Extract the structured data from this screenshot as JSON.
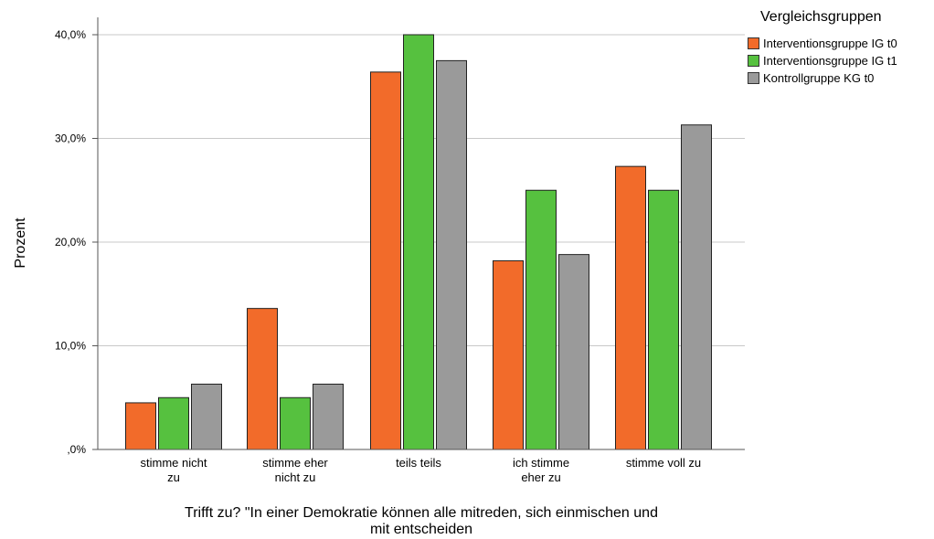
{
  "chart_data": {
    "type": "bar",
    "title": "",
    "xlabel": "Trifft zu? \"In einer Demokratie können alle mitreden, sich einmischen und mit entscheiden",
    "ylabel": "Prozent",
    "ylim": [
      0,
      40
    ],
    "yticks": [
      {
        "value": 0,
        "label": ",0%"
      },
      {
        "value": 10,
        "label": "10,0%"
      },
      {
        "value": 20,
        "label": "20,0%"
      },
      {
        "value": 30,
        "label": "30,0%"
      },
      {
        "value": 40,
        "label": "40,0%"
      }
    ],
    "grid": true,
    "legend_title": "Vergleichsgruppen",
    "legend_position": "top-right",
    "categories": [
      "stimme nicht zu",
      "stimme eher nicht zu",
      "teils teils",
      "ich stimme eher zu",
      "stimme voll zu"
    ],
    "series": [
      {
        "name": "Interventionsgruppe IG t0",
        "color": "#f26b2a",
        "values": [
          4.5,
          13.6,
          36.4,
          18.2,
          27.3
        ]
      },
      {
        "name": "Interventionsgruppe IG t1",
        "color": "#56c13f",
        "values": [
          5.0,
          5.0,
          40.0,
          25.0,
          25.0
        ]
      },
      {
        "name": "Kontrollgruppe KG t0",
        "color": "#9a9a9a",
        "values": [
          6.3,
          6.3,
          37.5,
          18.8,
          31.3
        ]
      }
    ]
  }
}
